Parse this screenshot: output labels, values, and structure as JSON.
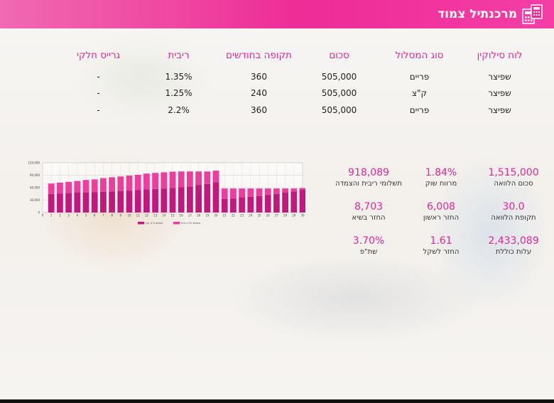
{
  "app": {
    "title": "מרכנתיל צמוד",
    "logo_icon": "calculator-icon"
  },
  "colors": {
    "accent": "#e8268f",
    "bar_dark": "#c2187e",
    "bar_light": "#ee3d9c"
  },
  "table": {
    "headers": [
      "לוח סילוקין",
      "סוג המסלול",
      "סכום",
      "תקופה בחודשים",
      "ריבית",
      "גרייס חלקי"
    ],
    "rows": [
      [
        "שפיצר",
        "פריים",
        "505,000",
        "360",
        "1.35%",
        "-"
      ],
      [
        "שפיצר",
        "ק\"צ",
        "505,000",
        "240",
        "1.25%",
        "-"
      ],
      [
        "שפיצר",
        "פריים",
        "505,000",
        "360",
        "2.2%",
        "-"
      ]
    ]
  },
  "kpis": [
    [
      {
        "value": "1,515,000",
        "label": "סכום הלוואה"
      },
      {
        "value": "1.84%",
        "label": "מרווח שוק"
      },
      {
        "value": "918,089",
        "label": "תשלומי ריבית והצמדה"
      }
    ],
    [
      {
        "value": "30.0",
        "label": "תקופת הלוואה"
      },
      {
        "value": "6,008",
        "label": "החזר ראשון"
      },
      {
        "value": "8,703",
        "label": "החזר בשיא"
      }
    ],
    [
      {
        "value": "2,433,089",
        "label": "עלות כוללת"
      },
      {
        "value": "1.61",
        "label": "החזר לשקל"
      },
      {
        "value": "3.70%",
        "label": "שת\"פ"
      }
    ]
  ],
  "chart_data": {
    "type": "bar",
    "stacked": true,
    "categories": [
      "0",
      "1",
      "2",
      "3",
      "4",
      "5",
      "6",
      "7",
      "8",
      "9",
      "10",
      "11",
      "12",
      "13",
      "14",
      "15",
      "16",
      "17",
      "18",
      "19",
      "20",
      "21",
      "22",
      "23",
      "24",
      "25",
      "26",
      "27",
      "28",
      "29",
      "30"
    ],
    "ylim": [
      0,
      120000
    ],
    "yticks": [
      "0",
      "30,000",
      "60,000",
      "90,000",
      "120,000"
    ],
    "series": [
      {
        "name": "תשלום ע\"ח קרן",
        "values": [
          0,
          45000,
          46000,
          47000,
          48000,
          48500,
          49000,
          50000,
          51000,
          52000,
          53000,
          54000,
          56000,
          57000,
          58000,
          59000,
          61000,
          63000,
          66000,
          69000,
          73000,
          33000,
          34000,
          36000,
          38000,
          40000,
          42000,
          45000,
          48000,
          51000,
          55000
        ]
      },
      {
        "name": "תשלום ע\"ח ריבית",
        "values": [
          0,
          25000,
          26000,
          27000,
          28000,
          30000,
          31000,
          33000,
          34000,
          35000,
          36000,
          37000,
          38000,
          38500,
          39000,
          39500,
          38000,
          36000,
          33000,
          30000,
          28000,
          25000,
          24000,
          22000,
          20000,
          18000,
          16000,
          13000,
          10000,
          7000,
          4000
        ]
      }
    ],
    "grid": true,
    "legend": "bottom"
  }
}
